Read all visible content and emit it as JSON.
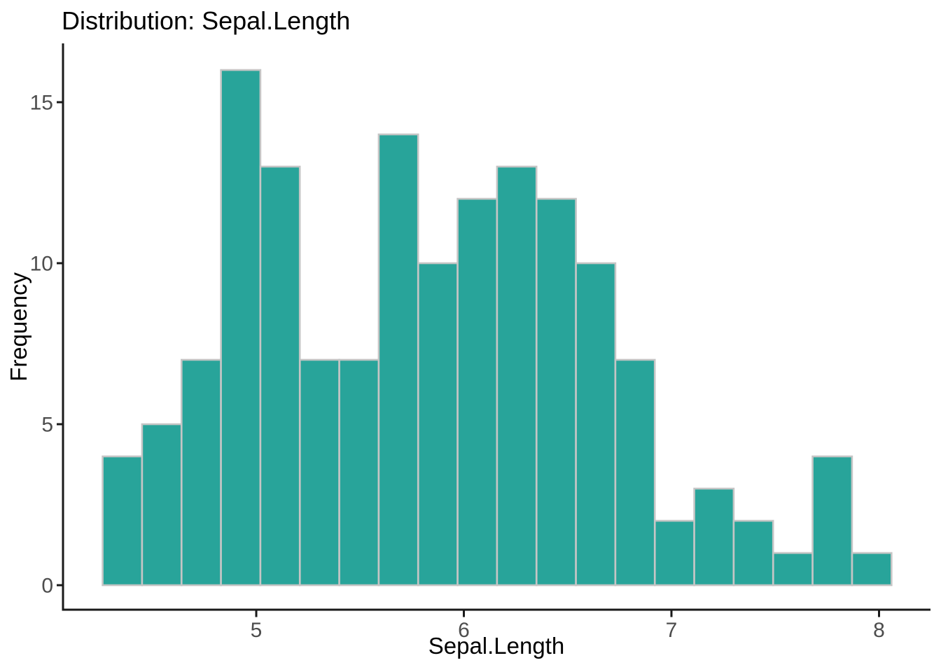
{
  "chart_data": {
    "type": "bar",
    "subtype": "histogram",
    "title": "Distribution: Sepal.Length",
    "xlabel": "Sepal.Length",
    "ylabel": "Frequency",
    "bin_start": 4.26,
    "bin_width": 0.19,
    "bin_edges": [
      4.26,
      4.45,
      4.64,
      4.83,
      5.02,
      5.21,
      5.4,
      5.59,
      5.78,
      5.97,
      6.16,
      6.35,
      6.54,
      6.73,
      6.92,
      7.11,
      7.3,
      7.49,
      7.68,
      7.87,
      8.06
    ],
    "counts": [
      4,
      5,
      7,
      16,
      13,
      7,
      7,
      14,
      10,
      12,
      13,
      12,
      10,
      7,
      2,
      3,
      2,
      1,
      4,
      1
    ],
    "total_n": 150,
    "x_ticks": [
      5,
      6,
      7,
      8
    ],
    "y_ticks": [
      0,
      5,
      10,
      15
    ],
    "xlim": [
      4.07,
      8.25
    ],
    "ylim": [
      0,
      16.8
    ],
    "grid": false,
    "legend": false,
    "colors": {
      "bar_fill": "#28a49a",
      "bar_stroke": "#c5c5c5",
      "axis_line": "#1a1a1a",
      "tick_label": "#4d4d4d",
      "text": "#000000",
      "background": "#ffffff"
    }
  }
}
